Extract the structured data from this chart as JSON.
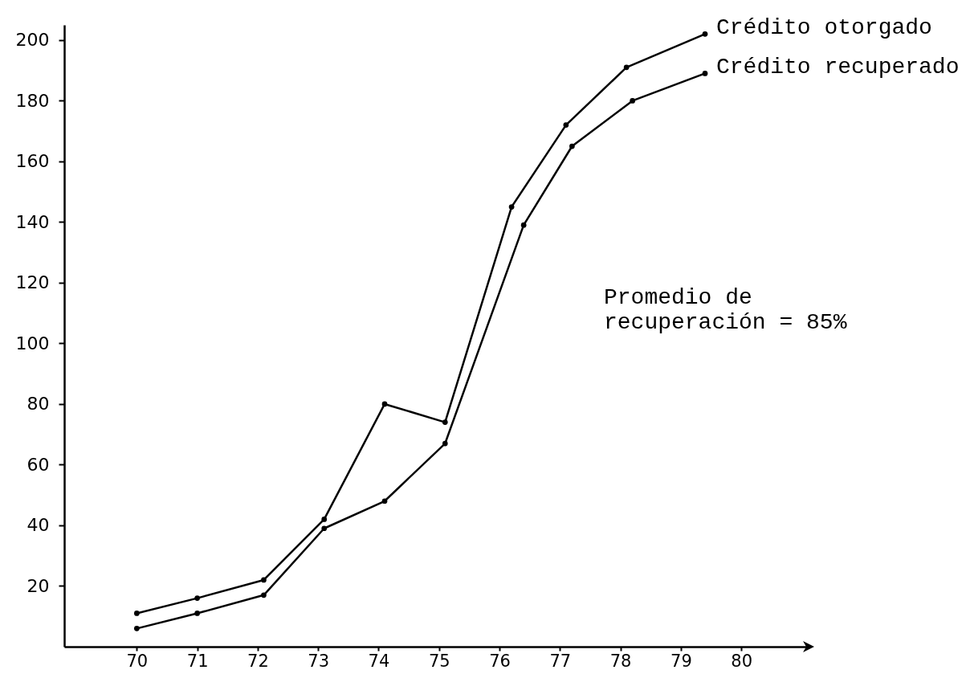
{
  "chart_data": {
    "type": "line",
    "series": [
      {
        "name": "Crédito otorgado",
        "color": "#000000",
        "x": [
          70,
          71,
          72.1,
          73.1,
          74.1,
          75.1,
          76.2,
          77.1,
          78.1,
          79.4
        ],
        "values": [
          11,
          16,
          22,
          42,
          80,
          74,
          145,
          172,
          191,
          202
        ]
      },
      {
        "name": "Crédito recuperado",
        "color": "#000000",
        "x": [
          70,
          71,
          72.1,
          73.1,
          74.1,
          75.1,
          76.4,
          77.2,
          78.2,
          79.4
        ],
        "values": [
          6,
          11,
          17,
          39,
          48,
          67,
          139,
          165,
          180,
          189
        ]
      }
    ],
    "xlim": [
      68.8,
      81.1
    ],
    "xticks": [
      70,
      71,
      72,
      73,
      74,
      75,
      76,
      77,
      78,
      79,
      80
    ],
    "ylim": [
      0,
      205
    ],
    "yticks": [
      20,
      40,
      60,
      80,
      100,
      120,
      140,
      160,
      180,
      200
    ],
    "marker": "circle",
    "annotations": [
      "Promedio de\nrecuperación = 85%"
    ]
  }
}
